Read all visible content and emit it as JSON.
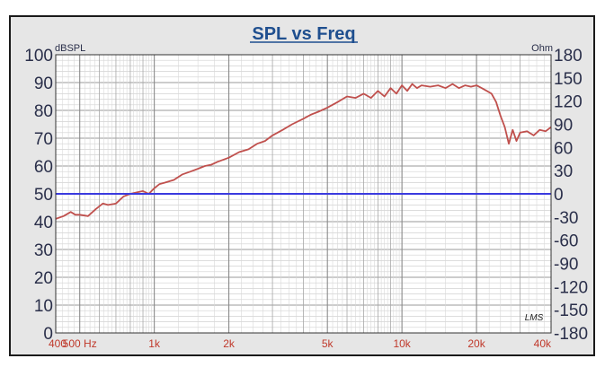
{
  "chart_data": {
    "type": "line",
    "title": "SPL vs Freq",
    "left_unit": "dBSPL",
    "right_unit": "Ohm",
    "watermark": "LMS",
    "x_scale": "log",
    "xlim": [
      400,
      40000
    ],
    "ylim": [
      0,
      100
    ],
    "y2lim": [
      -180,
      180
    ],
    "grid": true,
    "y_ticks": [
      "100",
      "90",
      "80",
      "70",
      "60",
      "50",
      "40",
      "30",
      "20",
      "10",
      "0"
    ],
    "y2_ticks": [
      "180",
      "150",
      "120",
      "90",
      "60",
      "30",
      "0",
      "-30",
      "-60",
      "-90",
      "-120",
      "-150",
      "-180"
    ],
    "x_tick_labels": [
      {
        "value": 400,
        "label": "400"
      },
      {
        "value": 500,
        "label": "500 Hz"
      },
      {
        "value": 1000,
        "label": "1k"
      },
      {
        "value": 2000,
        "label": "2k"
      },
      {
        "value": 5000,
        "label": "5k"
      },
      {
        "value": 10000,
        "label": "10k"
      },
      {
        "value": 20000,
        "label": "20k"
      },
      {
        "value": 40000,
        "label": "40k"
      }
    ],
    "series": [
      {
        "color": "#c0504d",
        "x": [
          400,
          430,
          460,
          480,
          500,
          540,
          580,
          620,
          650,
          700,
          750,
          800,
          850,
          900,
          950,
          1000,
          1050,
          1100,
          1200,
          1300,
          1400,
          1500,
          1600,
          1700,
          1800,
          2000,
          2200,
          2400,
          2600,
          2800,
          3000,
          3300,
          3600,
          4000,
          4300,
          4600,
          5000,
          5500,
          6000,
          6500,
          7000,
          7500,
          8000,
          8500,
          9000,
          9500,
          10000,
          10500,
          11000,
          11500,
          12000,
          13000,
          14000,
          15000,
          16000,
          17000,
          18000,
          19000,
          20000,
          21000,
          22000,
          23000,
          24000,
          25000,
          26000,
          27000,
          28000,
          29000,
          30000,
          32000,
          34000,
          36000,
          38000,
          40000
        ],
        "y": [
          41,
          42,
          43.5,
          42.5,
          42.5,
          42,
          44.5,
          46.5,
          46,
          46.5,
          49,
          50,
          50.5,
          51,
          50,
          52,
          53.5,
          54,
          55,
          57,
          58,
          59,
          60,
          60.5,
          61.5,
          63,
          65,
          66,
          68,
          69,
          71,
          73,
          75,
          77,
          78.5,
          79.5,
          81,
          83,
          85,
          84.5,
          86,
          84.5,
          87,
          85,
          88,
          86,
          89,
          87,
          89.5,
          88,
          89,
          88.5,
          89,
          88,
          89.5,
          88,
          89,
          88.5,
          89,
          88,
          87,
          86,
          83,
          78,
          74,
          68,
          73,
          69,
          72,
          72.5,
          71,
          73,
          72.5,
          74
        ]
      },
      {
        "color": "#3a3adf",
        "x": [
          400,
          40000
        ],
        "y": [
          50,
          50
        ]
      }
    ]
  }
}
